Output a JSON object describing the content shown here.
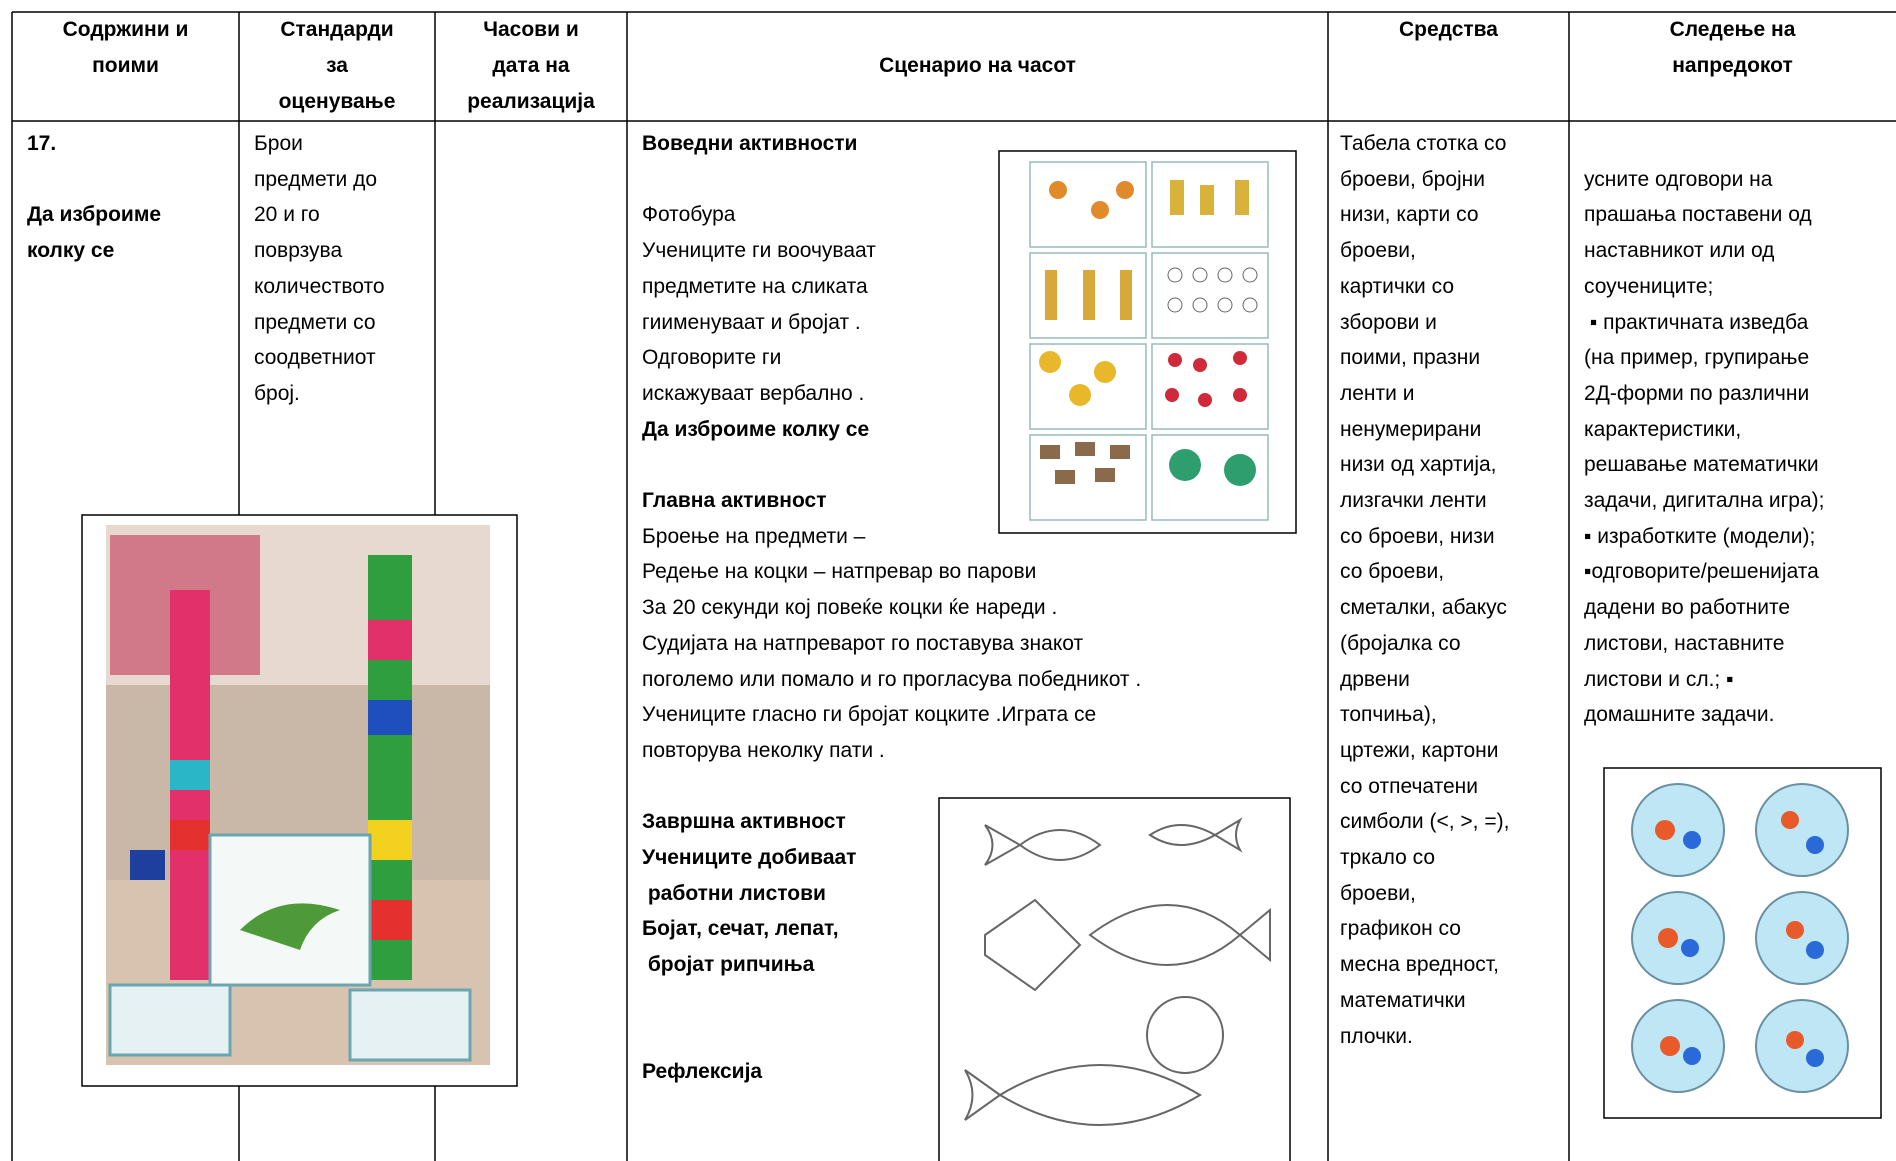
{
  "header": [
    [
      "Содржини и",
      "поими"
    ],
    [
      "Стандарди",
      "за",
      "оценување"
    ],
    [
      "Часови и",
      "дата на",
      "реализација"
    ],
    [
      "Сценарио на часот"
    ],
    [
      "Средства"
    ],
    [
      "Следење на",
      "напредокот"
    ]
  ],
  "row": {
    "number": "17.",
    "topic": [
      "Да изброиме",
      "колку се"
    ],
    "standards": [
      "Брои",
      "предмети до",
      "20 и го",
      "поврзува",
      "количеството",
      "предмети со",
      "соодветниот",
      "број."
    ],
    "scenario": {
      "intro_heading": "Воведни активности",
      "intro": [
        "Фотобура",
        "Учениците ги воочуваат",
        "предметите на сликата",
        "гиименуваат и бројат .",
        "Одговорите ги",
        "искажуваат вербално ."
      ],
      "intro_bold": "Да изброиме колку се",
      "main_heading": "Главна активност",
      "main": [
        "Броење на предмети –",
        "Редење на коцки – натпревар во парови",
        "За 20 секунди кој повеќе коцки ќе нареди .",
        "Судијата на натпреварот го поставува знакот",
        "поголемо или помало и го прогласува победникот .",
        "Учениците гласно ги бројат коцките .Играта се",
        "повторува неколку пати ."
      ],
      "final_heading": "Завршна активност",
      "final": [
        "Учениците добиваат",
        " работни листови",
        "Бојат, сечат, лепат,",
        " бројат рипчиња"
      ],
      "reflection": "Рефлексија"
    },
    "resources": [
      "Табела стотка со",
      "броеви, бројни",
      "низи, карти со",
      "броеви,",
      "картички со",
      "зборови и",
      "поими, празни",
      "ленти и",
      "ненумерирани",
      "низи од хартија,",
      "лизгачки ленти",
      "со броеви, низи",
      "со броеви,",
      "сметалки, абакус",
      "(бројалка со",
      "дрвени",
      "топчиња),",
      "цртежи, картони",
      "со отпечатени",
      "симболи (<, >, =),",
      "тркало со",
      "броеви,",
      "графикон со",
      "месна вредност,",
      "математички",
      "плочки."
    ],
    "tracking": [
      "усните одговори на",
      "прашања поставени од",
      "наставникот или од",
      "соучениците;",
      " ▪ практичната изведба",
      "(на пример, групирање",
      "2Д-форми по различни",
      "карактеристики,",
      "решавање математички",
      "задачи, дигитална игра);",
      "▪ изработките (модели);",
      "▪одговорите/решенијата",
      "дадени во работните",
      "листови, наставните",
      "листови и сл.; ▪",
      "домашните задачи."
    ]
  }
}
